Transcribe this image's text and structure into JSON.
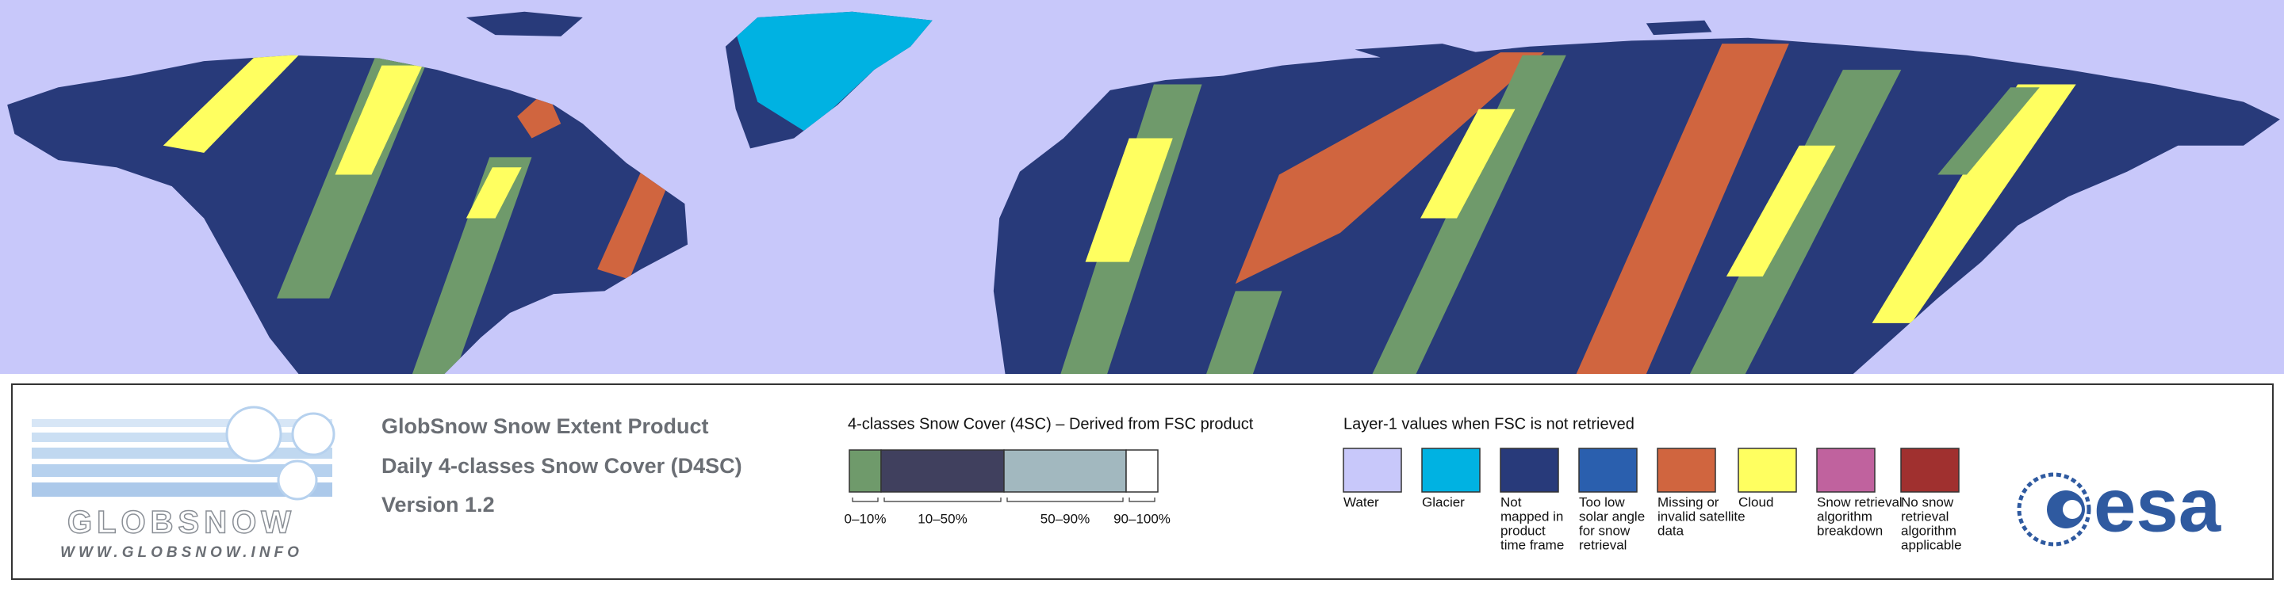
{
  "logo": {
    "name": "GLOBSNOW",
    "url": "WWW.GLOBSNOW.INFO"
  },
  "product": {
    "title": "GlobSnow Snow Extent Product",
    "subtitle": "Daily 4-classes Snow Cover (D4SC)",
    "version": "Version 1.2"
  },
  "snow_cover": {
    "title": "4-classes Snow Cover (4SC) – Derived from FSC product",
    "classes": [
      {
        "label": "0–10%",
        "color": "#6f9a6b"
      },
      {
        "label": "10–50%",
        "color": "#40405e"
      },
      {
        "label": "50–90%",
        "color": "#a2b8bf"
      },
      {
        "label": "90–100%",
        "color": "#ffffff"
      }
    ]
  },
  "layer1": {
    "title": "Layer-1 values when FSC is not retrieved",
    "items": [
      {
        "lines": [
          "Water"
        ],
        "color": "#c8c8fa"
      },
      {
        "lines": [
          "Glacier"
        ],
        "color": "#00b2e2"
      },
      {
        "lines": [
          "Not",
          "mapped in",
          "product",
          "time frame"
        ],
        "color": "#283a7a"
      },
      {
        "lines": [
          "Too low",
          "solar angle",
          "for snow",
          "retrieval"
        ],
        "color": "#2a5fae"
      },
      {
        "lines": [
          "Missing or",
          "invalid satellite",
          "data"
        ],
        "color": "#d0653f"
      },
      {
        "lines": [
          "Cloud"
        ],
        "color": "#ffff60"
      },
      {
        "lines": [
          "Snow retrieval",
          "algorithm",
          "breakdown"
        ],
        "color": "#c0629e"
      },
      {
        "lines": [
          "No snow",
          "retrieval",
          "algorithm",
          "applicable"
        ],
        "color": "#a0302f"
      }
    ]
  },
  "esa_logo": "esa"
}
